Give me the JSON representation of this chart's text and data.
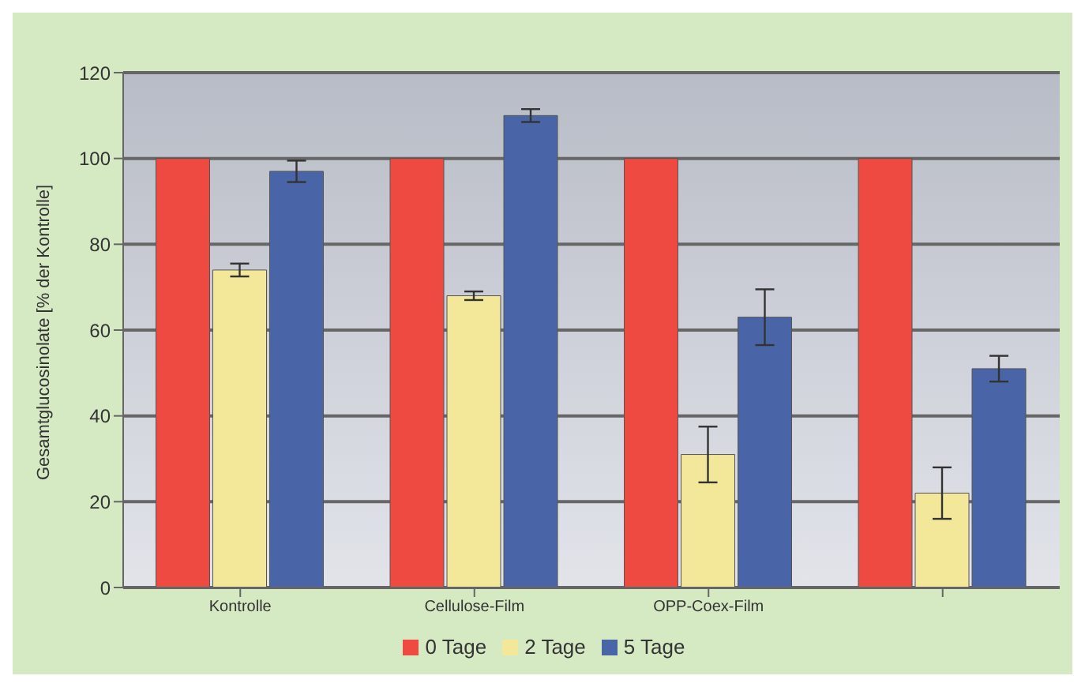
{
  "chart_data": {
    "type": "bar",
    "ylabel": "Gesamtglucosinolate [% der Kontrolle]",
    "categories": [
      "Kontrolle",
      "Cellulose-Film",
      "OPP-Coex-Film",
      null
    ],
    "series": [
      {
        "name": "0 Tage",
        "color": "#ee4a42",
        "values": [
          100,
          100,
          100,
          100
        ]
      },
      {
        "name": "2 Tage",
        "color": "#f3e89a",
        "values": [
          74,
          68,
          31,
          22
        ],
        "errors": [
          1.5,
          1,
          6.5,
          6
        ]
      },
      {
        "name": "5 Tage",
        "color": "#4a64a8",
        "values": [
          97,
          110,
          63,
          51
        ],
        "errors": [
          2.5,
          1.5,
          6.5,
          3
        ]
      }
    ],
    "ylim": [
      0,
      120
    ],
    "yticks": [
      0,
      20,
      40,
      60,
      80,
      100,
      120
    ],
    "grid": "y",
    "legend": "bottom"
  }
}
